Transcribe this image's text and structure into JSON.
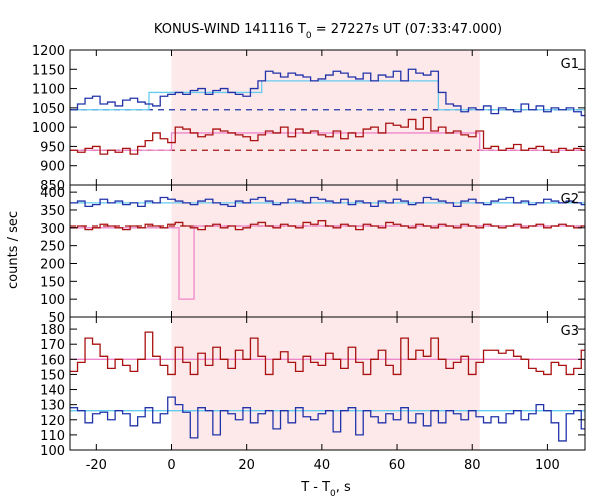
{
  "chart_data": {
    "type": "line",
    "title": "KONUS-WIND 141116 T",
    "title_subscript": "0",
    "title_suffix": " = 27227s UT (07:33:47.000)",
    "xlabel": "T - T",
    "xlabel_subscript": "0",
    "xlabel_suffix": ", s",
    "ylabel": "counts / sec",
    "xlim": [
      -27,
      110
    ],
    "x_ticks": [
      -20,
      0,
      20,
      40,
      60,
      80,
      100
    ],
    "highlight_interval": [
      0,
      82
    ],
    "colors": {
      "blue_series": "#2233aa",
      "red_series": "#aa1111",
      "blue_fit": "#66ccee",
      "red_fit": "#ee88cc",
      "highlight": "#fde9ea"
    },
    "panels": [
      {
        "name": "G1",
        "ylim": [
          850,
          1200
        ],
        "y_ticks": [
          850,
          900,
          950,
          1000,
          1050,
          1100,
          1150,
          1200
        ],
        "blue_background": 1045,
        "red_background": 940,
        "blue_step": {
          "x": [
            -27,
            -25,
            -23,
            -21,
            -19,
            -17,
            -15,
            -13,
            -11,
            -9,
            -7,
            -5,
            -3,
            -1,
            1,
            3,
            5,
            7,
            9,
            11,
            13,
            15,
            17,
            19,
            21,
            23,
            25,
            27,
            29,
            31,
            33,
            35,
            37,
            39,
            41,
            43,
            45,
            47,
            49,
            51,
            53,
            55,
            57,
            59,
            61,
            63,
            65,
            67,
            69,
            71,
            73,
            75,
            77,
            79,
            81,
            83,
            85,
            87,
            89,
            91,
            93,
            95,
            97,
            99,
            101,
            103,
            105,
            107,
            109
          ],
          "y": [
            1045,
            1060,
            1075,
            1080,
            1060,
            1065,
            1055,
            1070,
            1075,
            1065,
            1060,
            1055,
            1080,
            1085,
            1090,
            1085,
            1095,
            1100,
            1085,
            1095,
            1100,
            1090,
            1085,
            1080,
            1100,
            1120,
            1145,
            1140,
            1130,
            1140,
            1135,
            1130,
            1120,
            1125,
            1135,
            1145,
            1140,
            1130,
            1125,
            1140,
            1120,
            1135,
            1130,
            1145,
            1120,
            1150,
            1140,
            1135,
            1145,
            1090,
            1060,
            1055,
            1040,
            1050,
            1045,
            1055,
            1035,
            1050,
            1045,
            1040,
            1060,
            1045,
            1055,
            1040,
            1050,
            1045,
            1050,
            1040,
            1030
          ]
        },
        "red_step": {
          "x": [
            -27,
            -25,
            -23,
            -21,
            -19,
            -17,
            -15,
            -13,
            -11,
            -9,
            -7,
            -5,
            -3,
            -1,
            1,
            3,
            5,
            7,
            9,
            11,
            13,
            15,
            17,
            19,
            21,
            23,
            25,
            27,
            29,
            31,
            33,
            35,
            37,
            39,
            41,
            43,
            45,
            47,
            49,
            51,
            53,
            55,
            57,
            59,
            61,
            63,
            65,
            67,
            69,
            71,
            73,
            75,
            77,
            79,
            81,
            83,
            85,
            87,
            89,
            91,
            93,
            95,
            97,
            99,
            101,
            103,
            105,
            107,
            109
          ],
          "y": [
            940,
            935,
            945,
            950,
            930,
            940,
            935,
            945,
            930,
            950,
            965,
            985,
            970,
            960,
            1000,
            995,
            985,
            975,
            980,
            995,
            990,
            985,
            980,
            975,
            965,
            980,
            990,
            985,
            1000,
            975,
            995,
            985,
            990,
            980,
            975,
            990,
            970,
            985,
            975,
            995,
            1000,
            985,
            1010,
            1005,
            1000,
            1020,
            995,
            1025,
            990,
            1000,
            985,
            990,
            980,
            975,
            990,
            945,
            950,
            940,
            945,
            955,
            940,
            945,
            950,
            940,
            935,
            945,
            940,
            945,
            940
          ]
        },
        "blue_fit": [
          [
            -27,
            1045
          ],
          [
            -6,
            1045
          ],
          [
            -6,
            1090
          ],
          [
            24,
            1090
          ],
          [
            24,
            1120
          ],
          [
            71,
            1120
          ],
          [
            71,
            1045
          ],
          [
            110,
            1045
          ]
        ],
        "red_fit": [
          [
            -27,
            940
          ],
          [
            0,
            940
          ],
          [
            0,
            985
          ],
          [
            82,
            985
          ],
          [
            82,
            940
          ],
          [
            110,
            940
          ]
        ]
      },
      {
        "name": "G2",
        "ylim": [
          50,
          420
        ],
        "y_ticks": [
          50,
          100,
          150,
          200,
          250,
          300,
          350,
          400
        ],
        "blue_background": 370,
        "red_background": 305,
        "blue_step": {
          "x": [
            -27,
            -25,
            -23,
            -21,
            -19,
            -17,
            -15,
            -13,
            -11,
            -9,
            -7,
            -5,
            -3,
            -1,
            1,
            3,
            5,
            7,
            9,
            11,
            13,
            15,
            17,
            19,
            21,
            23,
            25,
            27,
            29,
            31,
            33,
            35,
            37,
            39,
            41,
            43,
            45,
            47,
            49,
            51,
            53,
            55,
            57,
            59,
            61,
            63,
            65,
            67,
            69,
            71,
            73,
            75,
            77,
            79,
            81,
            83,
            85,
            87,
            89,
            91,
            93,
            95,
            97,
            99,
            101,
            103,
            105,
            107,
            109
          ],
          "y": [
            370,
            375,
            360,
            365,
            380,
            370,
            375,
            365,
            370,
            360,
            375,
            370,
            385,
            380,
            375,
            370,
            365,
            375,
            380,
            370,
            365,
            360,
            375,
            370,
            380,
            385,
            375,
            365,
            370,
            380,
            375,
            370,
            385,
            380,
            375,
            370,
            380,
            365,
            375,
            370,
            360,
            375,
            370,
            380,
            375,
            365,
            370,
            385,
            380,
            375,
            370,
            360,
            375,
            380,
            370,
            365,
            375,
            380,
            385,
            370,
            375,
            365,
            370,
            380,
            375,
            370,
            375,
            370,
            365
          ]
        },
        "red_step": {
          "x": [
            -27,
            -25,
            -23,
            -21,
            -19,
            -17,
            -15,
            -13,
            -11,
            -9,
            -7,
            -5,
            -3,
            -1,
            1,
            3,
            5,
            7,
            9,
            11,
            13,
            15,
            17,
            19,
            21,
            23,
            25,
            27,
            29,
            31,
            33,
            35,
            37,
            39,
            41,
            43,
            45,
            47,
            49,
            51,
            53,
            55,
            57,
            59,
            61,
            63,
            65,
            67,
            69,
            71,
            73,
            75,
            77,
            79,
            81,
            83,
            85,
            87,
            89,
            91,
            93,
            95,
            97,
            99,
            101,
            103,
            105,
            107,
            109
          ],
          "y": [
            300,
            305,
            295,
            300,
            310,
            305,
            300,
            295,
            305,
            300,
            310,
            305,
            300,
            310,
            315,
            305,
            300,
            295,
            305,
            310,
            300,
            305,
            295,
            300,
            310,
            315,
            305,
            300,
            310,
            305,
            300,
            315,
            310,
            320,
            305,
            300,
            310,
            305,
            295,
            310,
            305,
            300,
            315,
            310,
            305,
            300,
            310,
            305,
            300,
            310,
            305,
            300,
            310,
            305,
            300,
            310,
            305,
            300,
            305,
            310,
            300,
            305,
            310,
            300,
            305,
            310,
            305,
            300,
            305
          ]
        },
        "blue_fit": [
          [
            -27,
            370
          ],
          [
            110,
            370
          ]
        ],
        "red_fit": [
          [
            -27,
            300
          ],
          [
            2,
            300
          ],
          [
            2,
            100
          ],
          [
            6,
            100
          ],
          [
            6,
            305
          ],
          [
            110,
            305
          ]
        ]
      },
      {
        "name": "G3",
        "ylim": [
          100,
          188
        ],
        "y_ticks": [
          100,
          110,
          120,
          130,
          140,
          150,
          160,
          170,
          180
        ],
        "blue_background": 126,
        "red_background": 160,
        "blue_step": {
          "x": [
            -27,
            -25,
            -23,
            -21,
            -19,
            -17,
            -15,
            -13,
            -11,
            -9,
            -7,
            -5,
            -3,
            -1,
            1,
            3,
            5,
            7,
            9,
            11,
            13,
            15,
            17,
            19,
            21,
            23,
            25,
            27,
            29,
            31,
            33,
            35,
            37,
            39,
            41,
            43,
            45,
            47,
            49,
            51,
            53,
            55,
            57,
            59,
            61,
            63,
            65,
            67,
            69,
            71,
            73,
            75,
            77,
            79,
            81,
            83,
            85,
            87,
            89,
            91,
            93,
            95,
            97,
            99,
            101,
            103,
            105,
            107,
            109
          ],
          "y": [
            128,
            126,
            118,
            124,
            125,
            120,
            126,
            124,
            116,
            122,
            128,
            118,
            124,
            135,
            130,
            125,
            108,
            128,
            126,
            110,
            126,
            124,
            120,
            128,
            118,
            124,
            126,
            114,
            126,
            118,
            128,
            122,
            120,
            124,
            126,
            112,
            126,
            128,
            110,
            126,
            122,
            118,
            124,
            120,
            128,
            118,
            124,
            116,
            126,
            118,
            126,
            124,
            120,
            126,
            122,
            118,
            122,
            118,
            124,
            126,
            120,
            124,
            130,
            126,
            118,
            106,
            124,
            126,
            114
          ]
        },
        "red_step": {
          "x": [
            -27,
            -25,
            -23,
            -21,
            -19,
            -17,
            -15,
            -13,
            -11,
            -9,
            -7,
            -5,
            -3,
            -1,
            1,
            3,
            5,
            7,
            9,
            11,
            13,
            15,
            17,
            19,
            21,
            23,
            25,
            27,
            29,
            31,
            33,
            35,
            37,
            39,
            41,
            43,
            45,
            47,
            49,
            51,
            53,
            55,
            57,
            59,
            61,
            63,
            65,
            67,
            69,
            71,
            73,
            75,
            77,
            79,
            81,
            83,
            85,
            87,
            89,
            91,
            93,
            95,
            97,
            99,
            101,
            103,
            105,
            107,
            109
          ],
          "y": [
            152,
            158,
            174,
            170,
            162,
            154,
            160,
            156,
            152,
            160,
            178,
            162,
            156,
            150,
            168,
            158,
            150,
            164,
            156,
            168,
            160,
            154,
            166,
            160,
            174,
            162,
            150,
            160,
            165,
            158,
            152,
            162,
            158,
            156,
            164,
            160,
            154,
            168,
            158,
            150,
            160,
            166,
            156,
            150,
            174,
            160,
            166,
            162,
            174,
            160,
            154,
            158,
            162,
            150,
            158,
            166,
            166,
            164,
            166,
            162,
            160,
            154,
            152,
            150,
            158,
            156,
            150,
            154,
            166
          ]
        },
        "blue_fit": [
          [
            -27,
            126
          ],
          [
            110,
            126
          ]
        ],
        "red_fit": [
          [
            -27,
            160
          ],
          [
            110,
            160
          ]
        ]
      }
    ]
  }
}
